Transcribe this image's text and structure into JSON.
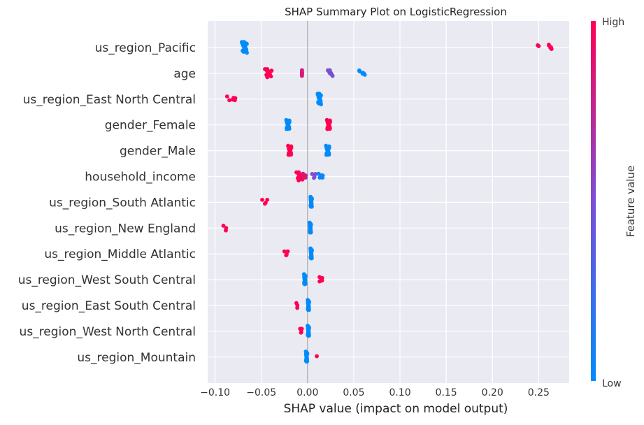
{
  "chart_data": {
    "type": "scatter",
    "title": "SHAP Summary Plot on LogisticRegression",
    "xlabel": "SHAP value (impact on model output)",
    "ylabel": "",
    "xlim": [
      -0.108,
      0.283
    ],
    "xticks": [
      -0.1,
      -0.05,
      0.0,
      0.05,
      0.1,
      0.15,
      0.2,
      0.25
    ],
    "xtick_labels": [
      "−0.10",
      "−0.05",
      "0.00",
      "0.05",
      "0.10",
      "0.15",
      "0.20",
      "0.25"
    ],
    "grid": true,
    "colorbar": {
      "label": "Feature value",
      "high_label": "High",
      "low_label": "Low",
      "low_color": "#008bfb",
      "mid_color": "#7c4ed6",
      "high_color": "#ff0052"
    },
    "features": [
      {
        "name": "us_region_Pacific",
        "points": [
          {
            "x": -0.068,
            "n": 40,
            "v": 0.0,
            "spread": 0.003
          },
          {
            "x": 0.263,
            "n": 8,
            "v": 1.0,
            "spread": 0.002
          },
          {
            "x": 0.252,
            "n": 2,
            "v": 1.0,
            "spread": 0.003
          }
        ]
      },
      {
        "name": "age",
        "points": [
          {
            "x": -0.042,
            "n": 22,
            "v": 1.0,
            "spread": 0.004
          },
          {
            "x": -0.006,
            "n": 10,
            "v": 0.85,
            "spread": 0.0
          },
          {
            "x": 0.025,
            "n": 10,
            "v": 0.5,
            "spread": 0.003
          },
          {
            "x": 0.06,
            "n": 8,
            "v": 0.0,
            "spread": 0.004
          }
        ]
      },
      {
        "name": "us_region_East North Central",
        "points": [
          {
            "x": -0.081,
            "n": 6,
            "v": 1.0,
            "spread": 0.006
          },
          {
            "x": 0.013,
            "n": 40,
            "v": 0.0,
            "spread": 0.002
          }
        ]
      },
      {
        "name": "gender_Female",
        "points": [
          {
            "x": -0.021,
            "n": 30,
            "v": 0.0,
            "spread": 0.002
          },
          {
            "x": 0.023,
            "n": 30,
            "v": 1.0,
            "spread": 0.002
          }
        ]
      },
      {
        "name": "gender_Male",
        "points": [
          {
            "x": -0.019,
            "n": 30,
            "v": 1.0,
            "spread": 0.002
          },
          {
            "x": 0.022,
            "n": 30,
            "v": 0.0,
            "spread": 0.002
          }
        ]
      },
      {
        "name": "household_income",
        "points": [
          {
            "x": -0.008,
            "n": 22,
            "v": 1.0,
            "spread": 0.004
          },
          {
            "x": -0.003,
            "n": 6,
            "v": 0.85,
            "spread": 0.002
          },
          {
            "x": 0.007,
            "n": 4,
            "v": 0.5,
            "spread": 0.002
          },
          {
            "x": 0.015,
            "n": 6,
            "v": 0.05,
            "spread": 0.003
          }
        ]
      },
      {
        "name": "us_region_South Atlantic",
        "points": [
          {
            "x": -0.046,
            "n": 4,
            "v": 1.0,
            "spread": 0.003
          },
          {
            "x": 0.004,
            "n": 44,
            "v": 0.0,
            "spread": 0.0008
          }
        ]
      },
      {
        "name": "us_region_New England",
        "points": [
          {
            "x": -0.088,
            "n": 3,
            "v": 1.0,
            "spread": 0.003
          },
          {
            "x": 0.003,
            "n": 44,
            "v": 0.0,
            "spread": 0.0008
          }
        ]
      },
      {
        "name": "us_region_Middle Atlantic",
        "points": [
          {
            "x": -0.023,
            "n": 4,
            "v": 1.0,
            "spread": 0.002
          },
          {
            "x": 0.004,
            "n": 44,
            "v": 0.0,
            "spread": 0.0008
          }
        ]
      },
      {
        "name": "us_region_West South Central",
        "points": [
          {
            "x": -0.003,
            "n": 44,
            "v": 0.0,
            "spread": 0.0008
          },
          {
            "x": 0.015,
            "n": 5,
            "v": 1.0,
            "spread": 0.002
          }
        ]
      },
      {
        "name": "us_region_East South Central",
        "points": [
          {
            "x": -0.011,
            "n": 3,
            "v": 1.0,
            "spread": 0.001
          },
          {
            "x": 0.001,
            "n": 44,
            "v": 0.0,
            "spread": 0.0008
          }
        ]
      },
      {
        "name": "us_region_West North Central",
        "points": [
          {
            "x": -0.007,
            "n": 4,
            "v": 1.0,
            "spread": 0.001
          },
          {
            "x": 0.001,
            "n": 44,
            "v": 0.0,
            "spread": 0.0008
          }
        ]
      },
      {
        "name": "us_region_Mountain",
        "points": [
          {
            "x": -0.001,
            "n": 44,
            "v": 0.0,
            "spread": 0.0008
          },
          {
            "x": 0.01,
            "n": 1,
            "v": 1.0,
            "spread": 0.0
          }
        ]
      }
    ]
  }
}
